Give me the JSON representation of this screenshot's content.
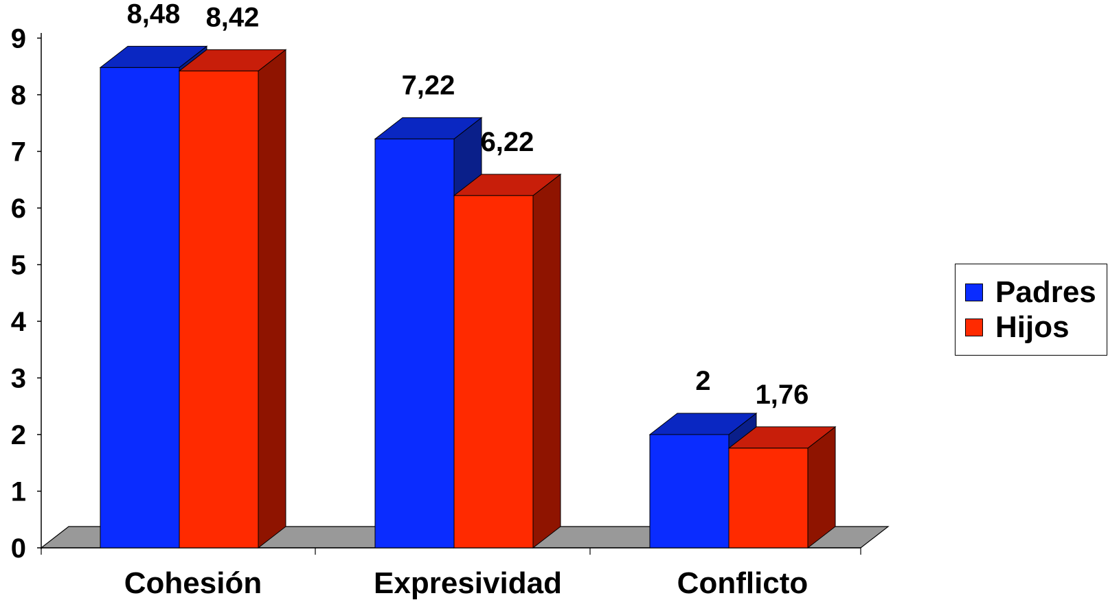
{
  "chart_data": {
    "type": "bar",
    "categories": [
      "Cohesión",
      "Expresividad",
      "Conflicto"
    ],
    "series": [
      {
        "name": "Padres",
        "values": [
          8.48,
          7.22,
          2
        ],
        "labels": [
          "8,48",
          "7,22",
          "2"
        ]
      },
      {
        "name": "Hijos",
        "values": [
          8.42,
          6.22,
          1.76
        ],
        "labels": [
          "8,42",
          "6,22",
          "1,76"
        ]
      }
    ],
    "ylim": [
      0,
      9
    ],
    "yticks": [
      "0",
      "1",
      "2",
      "3",
      "4",
      "5",
      "6",
      "7",
      "8",
      "9"
    ],
    "grid": false,
    "legend_position": "right",
    "three_d": true
  },
  "colors": {
    "padres": {
      "front": "#0a2cff",
      "top": "#0a27c2",
      "side": "#0a1f8a"
    },
    "hijos": {
      "front": "#ff2a00",
      "top": "#c81e0a",
      "side": "#8f1400"
    },
    "floor": "#999999"
  },
  "legend": {
    "items": [
      {
        "label": "Padres",
        "color": "#0a2cff"
      },
      {
        "label": "Hijos",
        "color": "#ff2a00"
      }
    ]
  }
}
